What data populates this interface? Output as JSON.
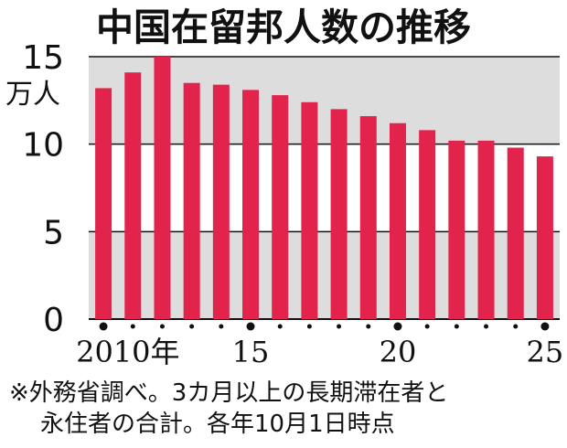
{
  "chart_data": {
    "type": "bar",
    "title": "中国在留邦人数の推移",
    "ylabel": "万人",
    "ylim": [
      0,
      15
    ],
    "yticks": [
      {
        "value": 0,
        "label": "0"
      },
      {
        "value": 5,
        "label": "5"
      },
      {
        "value": 10,
        "label": "10"
      },
      {
        "value": 15,
        "label": "15"
      }
    ],
    "categories": [
      "2010",
      "2011",
      "2012",
      "2013",
      "2014",
      "2015",
      "2016",
      "2017",
      "2018",
      "2019",
      "2020",
      "2021",
      "2022",
      "2023",
      "2024",
      "2025"
    ],
    "values": [
      13.2,
      14.1,
      15.0,
      13.5,
      13.4,
      13.1,
      12.8,
      12.4,
      12.0,
      11.6,
      11.2,
      10.8,
      10.2,
      10.2,
      9.8,
      9.3
    ],
    "xtick_labels": [
      {
        "category": "2010",
        "label": "2010年"
      },
      {
        "category": "2015",
        "label": "15"
      },
      {
        "category": "2020",
        "label": "20"
      },
      {
        "category": "2025",
        "label": "25"
      }
    ],
    "major_dot_categories": [
      "2010",
      "2015",
      "2020",
      "2025"
    ],
    "colors": {
      "bar": "#e2234b",
      "band": "#dddddd",
      "axis": "#111111"
    },
    "note_lines": [
      "※外務省調べ。3カ月以上の長期滞在者と",
      "永住者の合計。各年10月1日時点"
    ]
  }
}
